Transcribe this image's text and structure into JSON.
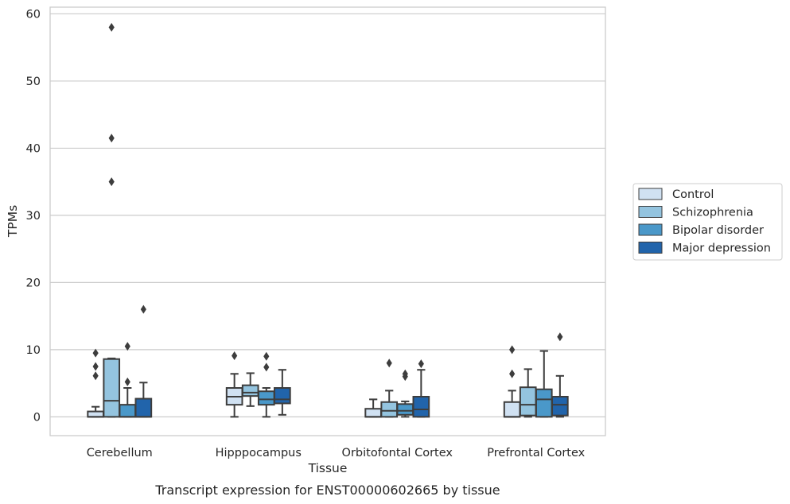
{
  "caption": "Transcript expression for ENST00000602665 by tissue",
  "chart_data": {
    "type": "box",
    "xlabel": "Tissue",
    "ylabel": "TPMs",
    "ylim": [
      -2.8,
      61
    ],
    "yticks": [
      0,
      10,
      20,
      30,
      40,
      50,
      60
    ],
    "grid": "horizontal",
    "legend_position": "right",
    "categories": [
      "Cerebellum",
      "Hipppocampus",
      "Orbitofontal Cortex",
      "Prefrontal Cortex"
    ],
    "series": [
      {
        "name": "Control",
        "color": "#d0e1f2",
        "boxes": [
          {
            "whislo": 0,
            "q1": 0,
            "med": 0,
            "q3": 0.8,
            "whishi": 1.5,
            "fliers": [
              6.1,
              7.5,
              9.5
            ]
          },
          {
            "whislo": 0,
            "q1": 1.8,
            "med": 3.0,
            "q3": 4.3,
            "whishi": 6.4,
            "fliers": [
              9.1
            ]
          },
          {
            "whislo": 0,
            "q1": 0,
            "med": 0,
            "q3": 1.2,
            "whishi": 2.6,
            "fliers": []
          },
          {
            "whislo": 0,
            "q1": 0,
            "med": 0,
            "q3": 2.2,
            "whishi": 3.9,
            "fliers": [
              6.4,
              10.0
            ]
          }
        ]
      },
      {
        "name": "Schizophrenia",
        "color": "#94c4df",
        "boxes": [
          {
            "whislo": 0,
            "q1": 0,
            "med": 2.4,
            "q3": 8.6,
            "whishi": 8.7,
            "fliers": [
              35.0,
              41.5,
              58.0
            ]
          },
          {
            "whislo": 1.6,
            "q1": 3.1,
            "med": 3.6,
            "q3": 4.7,
            "whishi": 6.5,
            "fliers": []
          },
          {
            "whislo": 0,
            "q1": 0,
            "med": 0.9,
            "q3": 2.2,
            "whishi": 3.9,
            "fliers": [
              8.0
            ]
          },
          {
            "whislo": 0,
            "q1": 0.2,
            "med": 1.8,
            "q3": 4.4,
            "whishi": 7.1,
            "fliers": []
          }
        ]
      },
      {
        "name": "Bipolar disorder",
        "color": "#4a98c9",
        "boxes": [
          {
            "whislo": 0,
            "q1": 0,
            "med": 0,
            "q3": 1.8,
            "whishi": 4.3,
            "fliers": [
              5.2,
              10.5
            ]
          },
          {
            "whislo": 0,
            "q1": 1.8,
            "med": 2.6,
            "q3": 3.8,
            "whishi": 4.3,
            "fliers": [
              7.4,
              9.0
            ]
          },
          {
            "whislo": 0,
            "q1": 0.3,
            "med": 0.9,
            "q3": 1.9,
            "whishi": 2.3,
            "fliers": [
              6.0,
              6.4
            ]
          },
          {
            "whislo": 0,
            "q1": 0,
            "med": 2.6,
            "q3": 4.1,
            "whishi": 9.8,
            "fliers": []
          }
        ]
      },
      {
        "name": "Major depression",
        "color": "#2164ab",
        "boxes": [
          {
            "whislo": 0,
            "q1": 0,
            "med": 0,
            "q3": 2.7,
            "whishi": 5.1,
            "fliers": [
              16.0
            ]
          },
          {
            "whislo": 0.3,
            "q1": 2.0,
            "med": 2.6,
            "q3": 4.3,
            "whishi": 7.0,
            "fliers": []
          },
          {
            "whislo": 0,
            "q1": 0,
            "med": 1.1,
            "q3": 3.0,
            "whishi": 7.0,
            "fliers": [
              7.9
            ]
          },
          {
            "whislo": 0,
            "q1": 0.2,
            "med": 1.8,
            "q3": 3.0,
            "whishi": 6.1,
            "fliers": [
              11.9
            ]
          }
        ]
      }
    ]
  }
}
